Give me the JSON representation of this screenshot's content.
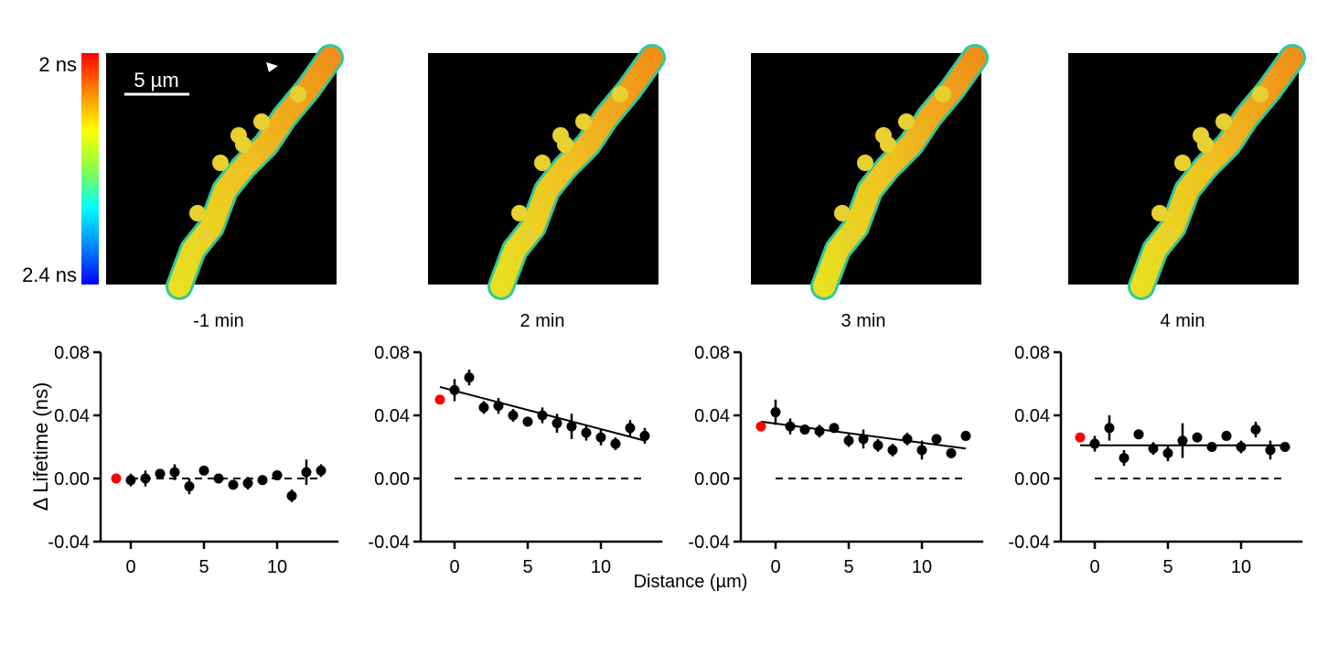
{
  "colorbar": {
    "top_label": "2 ns",
    "bottom_label": "2.4 ns",
    "colors": [
      "#ff0000",
      "#ff8800",
      "#ffff00",
      "#88ff44",
      "#00ffff",
      "#0088ff",
      "#0000ff"
    ]
  },
  "scale_bar": {
    "label": "5 µm"
  },
  "panel_titles": [
    "-1 min",
    "2 min",
    "3 min",
    "4 min"
  ],
  "y_axis_label": "Δ Lifetime (ns)",
  "x_axis_label": "Distance (µm)",
  "chart_data": [
    {
      "type": "scatter",
      "title": "-1 min",
      "ylim": [
        -0.04,
        0.08
      ],
      "yticks": [
        "0.08",
        "0.04",
        "0.00",
        "-0.04"
      ],
      "xticks": [
        "0",
        "5",
        "10"
      ],
      "reference_point": {
        "x": -1,
        "y": 0.0,
        "color": "#ff0000"
      },
      "x": [
        0,
        1,
        2,
        3,
        4,
        5,
        6,
        7,
        8,
        9,
        10,
        11,
        12,
        13
      ],
      "y": [
        -0.001,
        0.0,
        0.003,
        0.004,
        -0.005,
        0.005,
        0.0,
        -0.004,
        -0.003,
        -0.001,
        0.002,
        -0.011,
        0.004,
        0.005
      ],
      "err": [
        0.004,
        0.005,
        0.002,
        0.005,
        0.005,
        0.002,
        0.003,
        0.002,
        0.004,
        0.003,
        0.003,
        0.004,
        0.008,
        0.004
      ],
      "fit": null,
      "zero_line": true
    },
    {
      "type": "scatter",
      "title": "2 min",
      "ylim": [
        -0.04,
        0.08
      ],
      "yticks": [
        "0.08",
        "0.04",
        "0.00",
        "-0.04"
      ],
      "xticks": [
        "0",
        "5",
        "10"
      ],
      "reference_point": {
        "x": -1,
        "y": 0.05,
        "color": "#ff0000"
      },
      "x": [
        0,
        1,
        2,
        3,
        4,
        5,
        6,
        7,
        8,
        9,
        10,
        11,
        12,
        13
      ],
      "y": [
        0.056,
        0.064,
        0.045,
        0.046,
        0.04,
        0.036,
        0.04,
        0.035,
        0.033,
        0.029,
        0.026,
        0.022,
        0.032,
        0.027
      ],
      "err": [
        0.007,
        0.005,
        0.004,
        0.005,
        0.004,
        0.003,
        0.005,
        0.006,
        0.008,
        0.005,
        0.005,
        0.004,
        0.005,
        0.005
      ],
      "fit": {
        "x": [
          -1,
          13
        ],
        "y": [
          0.058,
          0.024
        ]
      },
      "zero_line": true
    },
    {
      "type": "scatter",
      "title": "3 min",
      "ylim": [
        -0.04,
        0.08
      ],
      "yticks": [
        "0.08",
        "0.04",
        "0.00",
        "-0.04"
      ],
      "xticks": [
        "0",
        "5",
        "10"
      ],
      "reference_point": {
        "x": -1,
        "y": 0.033,
        "color": "#ff0000"
      },
      "x": [
        0,
        1,
        2,
        3,
        4,
        5,
        6,
        7,
        8,
        9,
        10,
        11,
        12,
        13
      ],
      "y": [
        0.042,
        0.033,
        0.031,
        0.03,
        0.032,
        0.024,
        0.025,
        0.021,
        0.018,
        0.025,
        0.018,
        0.025,
        0.016,
        0.027
      ],
      "err": [
        0.008,
        0.005,
        0.003,
        0.004,
        0.003,
        0.004,
        0.006,
        0.004,
        0.004,
        0.004,
        0.006,
        0.003,
        0.003,
        0.002
      ],
      "fit": {
        "x": [
          -1,
          13
        ],
        "y": [
          0.036,
          0.019
        ]
      },
      "zero_line": true
    },
    {
      "type": "scatter",
      "title": "4 min",
      "ylim": [
        -0.04,
        0.08
      ],
      "yticks": [
        "0.08",
        "0.04",
        "0.00",
        "-0.04"
      ],
      "xticks": [
        "0",
        "5",
        "10"
      ],
      "reference_point": {
        "x": -1,
        "y": 0.026,
        "color": "#ff0000"
      },
      "x": [
        0,
        1,
        2,
        3,
        4,
        5,
        6,
        7,
        8,
        9,
        10,
        11,
        12,
        13
      ],
      "y": [
        0.022,
        0.032,
        0.013,
        0.028,
        0.019,
        0.016,
        0.024,
        0.026,
        0.02,
        0.027,
        0.02,
        0.031,
        0.018,
        0.02
      ],
      "err": [
        0.005,
        0.008,
        0.005,
        0.003,
        0.004,
        0.005,
        0.011,
        0.003,
        0.003,
        0.003,
        0.004,
        0.005,
        0.006,
        0.002
      ],
      "fit": {
        "x": [
          -1,
          13
        ],
        "y": [
          0.021,
          0.021
        ]
      },
      "zero_line": true
    }
  ]
}
